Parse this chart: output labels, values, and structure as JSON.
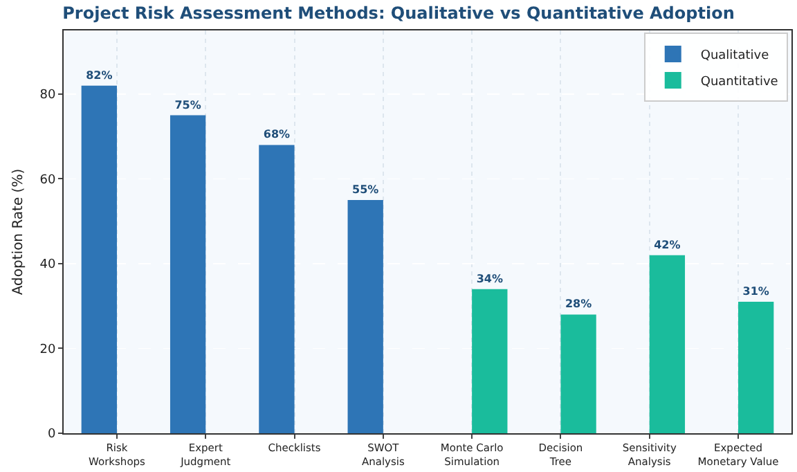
{
  "chart_data": {
    "type": "bar",
    "title": "Project Risk Assessment Methods: Qualitative vs Quantitative Adoption",
    "ylabel": "Adoption Rate (%)",
    "categories": [
      "Risk\nWorkshops",
      "Expert\nJudgment",
      "Checklists",
      "SWOT\nAnalysis",
      "Monte Carlo\nSimulation",
      "Decision\nTree",
      "Sensitivity\nAnalysis",
      "Expected\nMonetary Value"
    ],
    "series": [
      {
        "name": "Qualitative",
        "color": "#2e75b6",
        "values": [
          82,
          75,
          68,
          55,
          null,
          null,
          null,
          null
        ],
        "value_labels": [
          "82%",
          "75%",
          "68%",
          "55%",
          null,
          null,
          null,
          null
        ]
      },
      {
        "name": "Quantitative",
        "color": "#1abc9c",
        "values": [
          null,
          null,
          null,
          null,
          34,
          28,
          42,
          31
        ],
        "value_labels": [
          null,
          null,
          null,
          null,
          "34%",
          "28%",
          "42%",
          "31%"
        ]
      }
    ],
    "ylim": [
      0,
      95
    ],
    "yticks": [
      0,
      20,
      40,
      60,
      80
    ],
    "grid": true,
    "legend": "top right"
  }
}
